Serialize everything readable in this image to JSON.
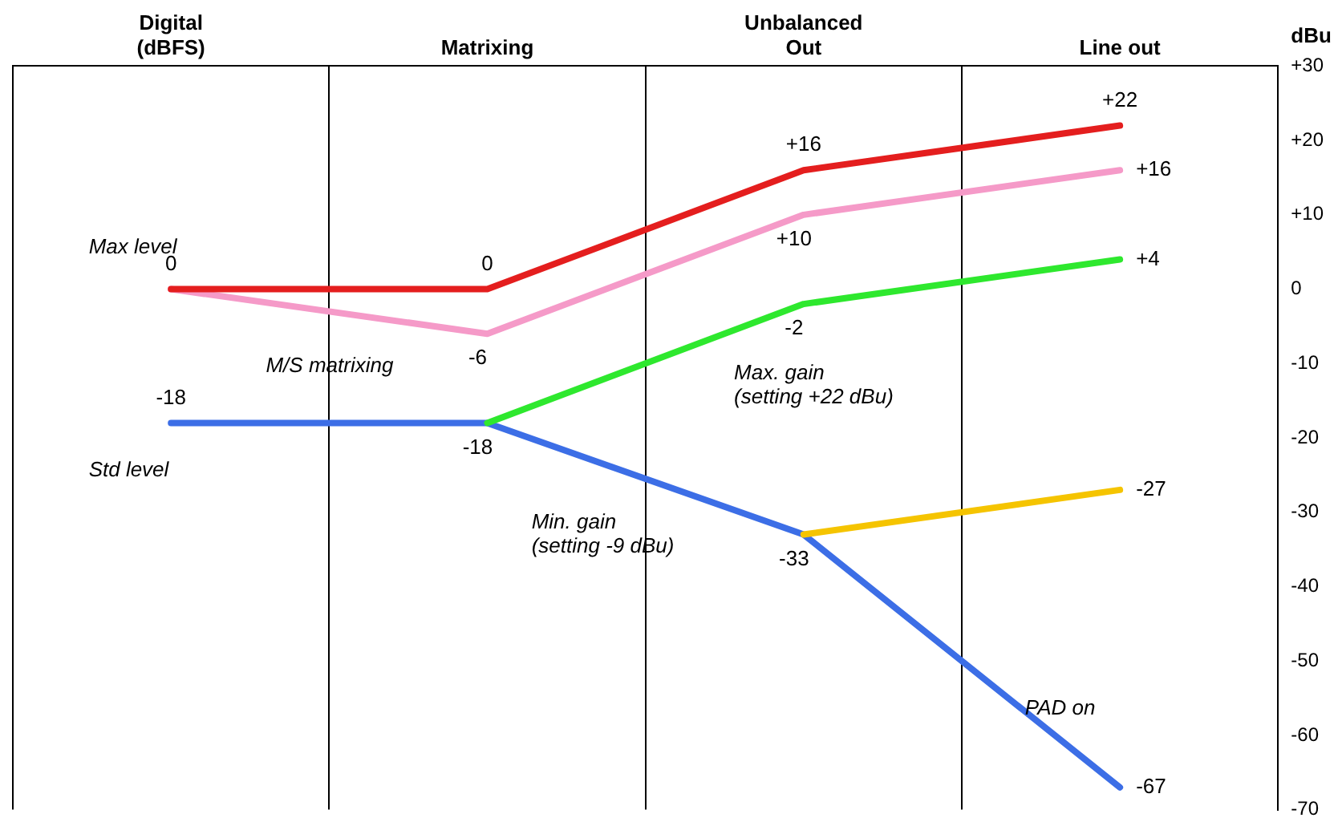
{
  "chart_data": {
    "type": "line",
    "categories": [
      "Digital\n(dBFS)",
      "Matrixing",
      "Unbalanced\nOut",
      "Line out"
    ],
    "ylabel": "dBu",
    "ylim": [
      -70,
      30
    ],
    "yticks": [
      {
        "value": 30,
        "label": "+30"
      },
      {
        "value": 20,
        "label": "+20"
      },
      {
        "value": 10,
        "label": "+10"
      },
      0,
      -10,
      -20,
      -30,
      -40,
      -50,
      -60,
      -70
    ],
    "series": [
      {
        "color": "#e41e1e",
        "values": [
          0,
          0,
          16,
          22
        ],
        "value_labels": [
          "0",
          "0",
          "+16",
          "+22"
        ]
      },
      {
        "color": "#f59ac8",
        "values": [
          0,
          -6,
          10,
          16
        ],
        "value_labels": [
          null,
          "-6",
          "+10",
          "+16"
        ]
      },
      {
        "color": "#2ee82e",
        "values": [
          null,
          -18,
          -2,
          4
        ],
        "value_labels": [
          null,
          null,
          "-2",
          "+4"
        ]
      },
      {
        "color": "#f5c400",
        "values": [
          null,
          null,
          -33,
          -27
        ],
        "value_labels": [
          null,
          null,
          null,
          "-27"
        ]
      },
      {
        "color": "#3c6ee6",
        "values": [
          -18,
          -18,
          -33,
          -67
        ],
        "value_labels": [
          "-18",
          "-18",
          "-33",
          "-67"
        ]
      }
    ],
    "annotations": [
      "Max level",
      "M/S matrixing",
      "Std level",
      "Max. gain\n(setting +22 dBu)",
      "Min. gain\n(setting -9 dBu)",
      "PAD on"
    ],
    "grid": "x",
    "legend": false,
    "marker": "none",
    "line_style": "solid"
  }
}
